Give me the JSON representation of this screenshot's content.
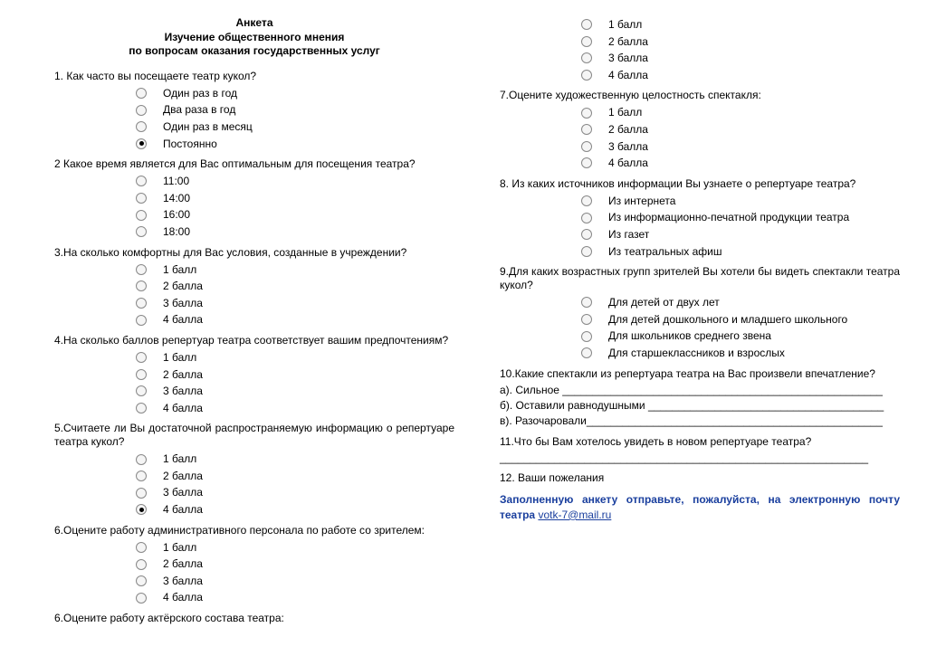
{
  "header": {
    "l1": "Анкета",
    "l2": "Изучение общественного мнения",
    "l3": "по вопросам оказания государственных услуг"
  },
  "q1": {
    "text": "1. Как часто вы посещаете театр кукол?",
    "o1": "Один раз в год",
    "o2": "Два раза в год",
    "o3": "Один раз в месяц",
    "o4": "Постоянно"
  },
  "q2": {
    "text": "2 Какое время является для Вас оптимальным для посещения театра?",
    "o1": "11:00",
    "o2": "14:00",
    "o3": "16:00",
    "o4": "18:00"
  },
  "q3": {
    "text": "3.На сколько комфортны для Вас условия, созданные в учреждении?",
    "o1": "1 балл",
    "o2": "2 балла",
    "o3": "3 балла",
    "o4": "4 балла"
  },
  "q4": {
    "text": "4.На сколько баллов репертуар театра соответствует вашим предпочтениям?",
    "o1": "1 балл",
    "o2": "2 балла",
    "o3": "3 балла",
    "o4": "4 балла"
  },
  "q5": {
    "text": "5.Считаете ли Вы достаточной распространяемую информацию о репертуаре театра кукол?",
    "o1": "1 балл",
    "o2": "2 балла",
    "o3": "3 балла",
    "o4": "4 балла"
  },
  "q6a": {
    "text": "6.Оцените работу административного персонала по работе со зрителем:",
    "o1": "1 балл",
    "o2": "2 балла",
    "o3": "3 балла",
    "o4": "4 балла"
  },
  "q6b": {
    "text": "6.Оцените работу актёрского состава театра:",
    "o1": "1 балл",
    "o2": "2 балла",
    "o3": "3 балла",
    "o4": "4 балла"
  },
  "q7": {
    "text": "7.Оцените художественную целостность спектакля:",
    "o1": "1 балл",
    "o2": "2 балла",
    "o3": "3 балла",
    "o4": "4 балла"
  },
  "q8": {
    "text": "8. Из каких источников информации Вы узнаете о репертуаре театра?",
    "o1": "Из интернета",
    "o2": "Из информационно-печатной продукции театра",
    "o3": "Из газет",
    "o4": "Из театральных афиш"
  },
  "q9": {
    "text": "9.Для каких возрастных групп зрителей Вы хотели бы видеть спектакли театра кукол?",
    "o1": "Для детей от двух лет",
    "o2": "Для детей дошкольного и младшего школьного",
    "o3": "Для школьников среднего звена",
    "o4": "Для старшеклассников и взрослых"
  },
  "q10": {
    "text": "10.Какие спектакли из репертуара театра на Вас произвели впечатление?",
    "a": "а). Сильное _____________________________________________________",
    "b": "б). Оставили равнодушными _______________________________________",
    "c": "в). Разочаровали_________________________________________________"
  },
  "q11": {
    "text": "11.Что бы Вам хотелось увидеть в новом репертуаре театра?",
    "line": "_____________________________________________________________"
  },
  "q12": {
    "text": "12. Ваши пожелания"
  },
  "footer": {
    "text": "Заполненную анкету отправьте, пожалуйста,  на электронную почту театра ",
    "email": "votk-7@mail.ru"
  }
}
